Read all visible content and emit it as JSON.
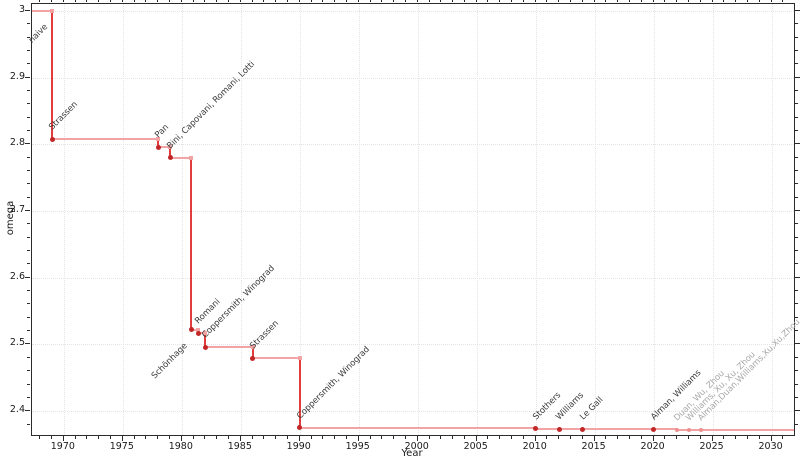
{
  "chart_data": {
    "type": "line",
    "subtype": "step-post",
    "title": "",
    "xlabel": "Year",
    "ylabel": "omega",
    "grid": true,
    "legend": "none",
    "xlim": [
      1967.3,
      2031.9
    ],
    "ylim": [
      2.3643,
      3.0105
    ],
    "x_major_ticks": [
      1970,
      1975,
      1980,
      1985,
      1990,
      1995,
      2000,
      2005,
      2010,
      2015,
      2020,
      2025,
      2030
    ],
    "x_minor_step": 1,
    "y_major_ticks": [
      {
        "value": 3.0,
        "label": "3"
      },
      {
        "value": 2.9,
        "label": "2.9"
      },
      {
        "value": 2.8,
        "label": "2.8"
      },
      {
        "value": 2.7,
        "label": "2.7"
      },
      {
        "value": 2.6,
        "label": "2.6"
      },
      {
        "value": 2.5,
        "label": "2.5"
      },
      {
        "value": 2.4,
        "label": "2.4"
      }
    ],
    "y_minor_step": 0.02,
    "start_omega": 3,
    "points": [
      {
        "label": "naive",
        "year": 1969,
        "omega": 3,
        "marker": false,
        "label_anchor": "before",
        "muted": false
      },
      {
        "label": "Strassen",
        "year": 1969,
        "omega": 2.8074,
        "marker": true,
        "label_anchor": "after",
        "muted": false
      },
      {
        "label": "Pan",
        "year": 1978,
        "omega": 2.796,
        "marker": true,
        "label_anchor": "after",
        "muted": false
      },
      {
        "label": "Bini, Capovani, Romani, Lotti",
        "year": 1979,
        "omega": 2.78,
        "marker": true,
        "label_anchor": "after",
        "muted": false
      },
      {
        "label": "Schönhage",
        "year": 1981,
        "plot_year": 1980.8,
        "omega": 2.522,
        "marker": true,
        "label_anchor": "before",
        "muted": false
      },
      {
        "label": "Romani",
        "year": 1981,
        "plot_year": 1981.4,
        "omega": 2.517,
        "marker": true,
        "label_anchor": "after",
        "muted": false
      },
      {
        "label": "Coppersmith, Winograd",
        "year": 1982,
        "omega": 2.496,
        "marker": true,
        "label_anchor": "after",
        "muted": false
      },
      {
        "label": "Strassen",
        "year": 1986,
        "omega": 2.479,
        "marker": true,
        "label_anchor": "after",
        "muted": false
      },
      {
        "label": "Coppersmith, Winograd",
        "year": 1990,
        "omega": 2.3755,
        "marker": true,
        "label_anchor": "after",
        "muted": false
      },
      {
        "label": "Stothers",
        "year": 2010,
        "omega": 2.3737,
        "marker": true,
        "label_anchor": "after",
        "muted": false
      },
      {
        "label": "Williams",
        "year": 2012,
        "omega": 2.3729,
        "marker": true,
        "label_anchor": "after",
        "muted": false
      },
      {
        "label": "Le Gall",
        "year": 2014,
        "omega": 2.3728639,
        "marker": true,
        "label_anchor": "after",
        "muted": false
      },
      {
        "label": "Alman, Williams",
        "year": 2020,
        "omega": 2.3728596,
        "marker": true,
        "label_anchor": "after",
        "muted": false
      },
      {
        "label": "Duan, Wu, Zhou",
        "year": 2022,
        "omega": 2.371866,
        "marker": true,
        "label_anchor": "after",
        "muted": true
      },
      {
        "label": "Williams, Xu, Xu, Zhou",
        "year": 2023,
        "omega": 2.371552,
        "marker": true,
        "label_anchor": "after",
        "muted": true
      },
      {
        "label": "Alman,Duan,Williams,Xu,Xu,Zhou",
        "year": 2024,
        "omega": 2.371339,
        "marker": true,
        "label_anchor": "after",
        "muted": true
      }
    ],
    "colors": {
      "line": "#f2a3a3",
      "drop_line": "#e23c3c",
      "marker": "#c22727",
      "marker_muted": "#ee9090",
      "label": "#3a3a3a",
      "label_muted": "#a8a8a8",
      "axis": "#2b2b2b",
      "grid": "#e4e4e4"
    }
  }
}
